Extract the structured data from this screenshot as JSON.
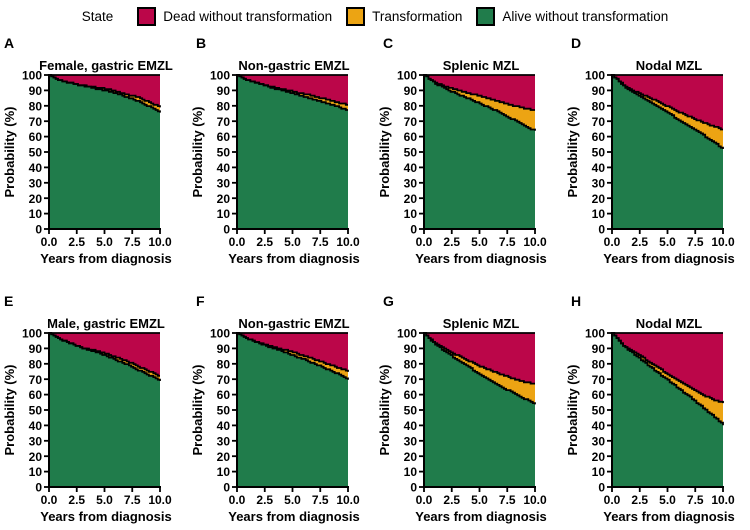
{
  "legend": {
    "state_label": "State",
    "items": [
      {
        "label": "Dead without transformation",
        "color": "#BB0649"
      },
      {
        "label": "Transformation",
        "color": "#ECA413"
      },
      {
        "label": "Alive without transformation",
        "color": "#207C4B"
      }
    ]
  },
  "colors": {
    "dead": "#BB0649",
    "transformation": "#ECA413",
    "alive": "#207C4B",
    "outline": "#000000"
  },
  "axes": {
    "ylabel": "Probability (%)",
    "xlabel": "Years from diagnosis",
    "ylim": [
      0,
      100
    ],
    "xlim": [
      0,
      10
    ],
    "yticks": [
      0,
      10,
      20,
      30,
      40,
      50,
      60,
      70,
      80,
      90,
      100
    ],
    "xtick_values": [
      0,
      2.5,
      5,
      7.5,
      10
    ],
    "xtick_labels": [
      "0.0",
      "2.5",
      "5.0",
      "7.5",
      "10.0"
    ],
    "grid": false
  },
  "chart_data": [
    {
      "panel": "A",
      "title": "Female, gastric EMZL",
      "type": "stacked_area",
      "x_years": [
        0,
        0.5,
        1,
        1.5,
        2,
        2.5,
        3,
        3.5,
        4,
        5,
        6,
        7,
        8,
        9,
        10
      ],
      "series": {
        "alive": [
          100,
          97.5,
          96.5,
          95.5,
          94.6,
          93.8,
          93.1,
          92.3,
          91.5,
          90,
          88,
          85.5,
          83,
          79.5,
          76
        ],
        "transformation": [
          0,
          0,
          0,
          0,
          0,
          0,
          0,
          0.3,
          0.7,
          1,
          1.4,
          1.8,
          2.4,
          2.8,
          3.2
        ],
        "dead": [
          0,
          2.5,
          3.5,
          4.5,
          5.4,
          6.2,
          6.9,
          7.4,
          7.8,
          9,
          10.6,
          12.7,
          14.6,
          17.7,
          20.8
        ]
      }
    },
    {
      "panel": "B",
      "title": "Non-gastric EMZL",
      "type": "stacked_area",
      "x_years": [
        0,
        0.5,
        1,
        1.5,
        2,
        2.5,
        3,
        3.5,
        4,
        5,
        6,
        7,
        8,
        9,
        10
      ],
      "series": {
        "alive": [
          100,
          98,
          96.5,
          95.2,
          94.2,
          93.2,
          92,
          91,
          90,
          88,
          86,
          84,
          81.8,
          79.5,
          77
        ],
        "transformation": [
          0,
          0,
          0,
          0,
          0,
          0.2,
          0.4,
          0.6,
          0.8,
          1.3,
          1.7,
          2,
          2.4,
          2.8,
          3.3
        ],
        "dead": [
          0,
          2,
          3.5,
          4.8,
          5.8,
          6.6,
          7.6,
          8.4,
          9.2,
          10.7,
          12.3,
          14,
          15.8,
          17.7,
          19.7
        ]
      }
    },
    {
      "panel": "C",
      "title": "Splenic MZL",
      "type": "stacked_area",
      "x_years": [
        0,
        0.5,
        1,
        1.5,
        2,
        2.5,
        3,
        3.5,
        4,
        5,
        6,
        7,
        8,
        9,
        10
      ],
      "series": {
        "alive": [
          100,
          97,
          94.5,
          92.5,
          90.7,
          89,
          87.5,
          86,
          84.6,
          81.5,
          78.3,
          74.8,
          71,
          67.3,
          63.5
        ],
        "transformation": [
          0,
          0,
          0.5,
          1,
          1.5,
          2.2,
          2.7,
          3.2,
          3.6,
          4.8,
          6,
          7.4,
          9.2,
          10.9,
          13.5
        ],
        "dead": [
          0,
          3,
          5,
          6.5,
          7.8,
          8.8,
          9.8,
          10.8,
          11.8,
          13.7,
          15.7,
          17.8,
          19.8,
          21.8,
          23
        ]
      }
    },
    {
      "panel": "D",
      "title": "Nodal MZL",
      "type": "stacked_area",
      "x_years": [
        0,
        0.5,
        1,
        1.5,
        2,
        2.5,
        3,
        3.5,
        4,
        5,
        6,
        7,
        8,
        9,
        10
      ],
      "series": {
        "alive": [
          100,
          96.5,
          93,
          90.5,
          88,
          86,
          83.8,
          81.6,
          79.5,
          75.3,
          70.8,
          66.5,
          61.8,
          57,
          52
        ],
        "transformation": [
          0,
          0,
          0.5,
          1,
          1.5,
          2,
          2.5,
          3,
          3.5,
          4.2,
          5.2,
          6.3,
          7.7,
          10,
          12.5
        ],
        "dead": [
          0,
          3.5,
          6.5,
          8.5,
          10.5,
          12,
          13.7,
          15.4,
          17,
          20.5,
          24,
          27.2,
          30.5,
          33,
          35.5
        ]
      }
    },
    {
      "panel": "E",
      "title": "Male, gastric EMZL",
      "type": "stacked_area",
      "x_years": [
        0,
        0.5,
        1,
        1.5,
        2,
        2.5,
        3,
        3.5,
        4,
        5,
        6,
        7,
        8,
        9,
        10
      ],
      "series": {
        "alive": [
          100,
          97.5,
          96,
          94.5,
          93,
          91.5,
          90.3,
          89.2,
          88,
          85.5,
          82.5,
          79.5,
          76,
          72.5,
          69
        ],
        "transformation": [
          0,
          0,
          0,
          0,
          0,
          0,
          0,
          0.4,
          0.8,
          1.3,
          1.7,
          2.2,
          2.2,
          2.5,
          3
        ],
        "dead": [
          0,
          2.5,
          4,
          5.5,
          7,
          8.5,
          9.7,
          10.4,
          11.2,
          13.2,
          15.8,
          18.3,
          21.8,
          25,
          28
        ]
      }
    },
    {
      "panel": "F",
      "title": "Non-gastric EMZL",
      "type": "stacked_area",
      "x_years": [
        0,
        0.5,
        1,
        1.5,
        2,
        2.5,
        3,
        3.5,
        4,
        5,
        6,
        7,
        8,
        9,
        10
      ],
      "series": {
        "alive": [
          100,
          97.8,
          96.2,
          94.8,
          93.3,
          92,
          90.5,
          89.4,
          88.2,
          85.5,
          82.8,
          79.8,
          76.7,
          73.5,
          70
        ],
        "transformation": [
          0,
          0,
          0,
          0,
          0,
          0.3,
          0.8,
          1,
          1.3,
          2,
          2.4,
          2.9,
          3.5,
          4.1,
          5
        ],
        "dead": [
          0,
          2.2,
          3.8,
          5.2,
          6.7,
          7.7,
          8.7,
          9.6,
          10.5,
          12.5,
          14.8,
          17.3,
          19.8,
          22.4,
          25
        ]
      }
    },
    {
      "panel": "G",
      "title": "Splenic MZL",
      "type": "stacked_area",
      "x_years": [
        0,
        0.5,
        1,
        1.5,
        2,
        2.5,
        3,
        3.5,
        4,
        5,
        6,
        7,
        8,
        9,
        10
      ],
      "series": {
        "alive": [
          100,
          96,
          92.8,
          90,
          87.3,
          84.8,
          82.3,
          80,
          77.8,
          73.3,
          69,
          64.8,
          61,
          57.3,
          54
        ],
        "transformation": [
          0,
          0,
          0.5,
          1.3,
          2,
          2.5,
          3,
          3.5,
          4,
          5.2,
          6.5,
          8,
          9.3,
          11,
          12.8
        ],
        "dead": [
          0,
          4,
          6.7,
          8.7,
          10.7,
          12.7,
          14.7,
          16.5,
          18.2,
          21.5,
          24.5,
          27.2,
          29.7,
          31.7,
          33.2
        ]
      }
    },
    {
      "panel": "H",
      "title": "Nodal MZL",
      "type": "stacked_area",
      "x_years": [
        0,
        0.5,
        1,
        1.5,
        2,
        2.5,
        3,
        3.5,
        4,
        5,
        6,
        7,
        8,
        9,
        10
      ],
      "series": {
        "alive": [
          100,
          95.5,
          92,
          88.5,
          86,
          83.3,
          80.3,
          77.5,
          74.8,
          69.3,
          63.8,
          58.3,
          52.5,
          46.5,
          40.5
        ],
        "transformation": [
          0,
          0,
          0,
          0.8,
          1.3,
          1.9,
          2.4,
          2.7,
          3.2,
          3.9,
          4.9,
          6.2,
          7.8,
          10.5,
          14
        ],
        "dead": [
          0,
          4.5,
          8,
          10.7,
          12.7,
          14.8,
          17.3,
          19.8,
          22,
          26.8,
          31.3,
          35.5,
          39.7,
          43,
          45.5
        ]
      }
    }
  ]
}
